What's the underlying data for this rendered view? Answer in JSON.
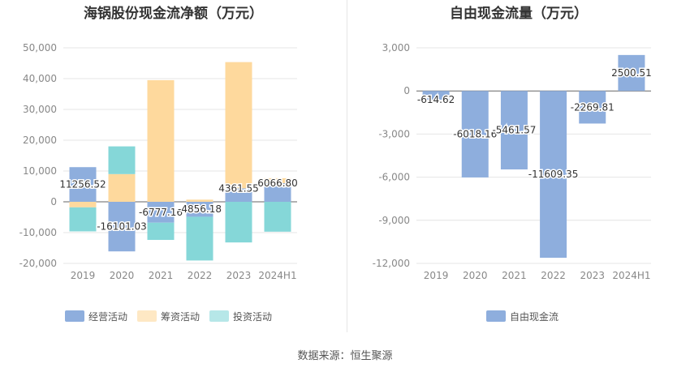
{
  "source": "数据来源：恒生聚源",
  "colors": {
    "operating": "#8eaedd",
    "financing": "#fed99d",
    "investing": "#85d7d8",
    "fcf": "#8eaedd"
  },
  "chart_data": [
    {
      "type": "bar",
      "stacked": true,
      "title": "海锅股份现金流净额（万元）",
      "categories": [
        "2019",
        "2020",
        "2021",
        "2022",
        "2023",
        "2024H1"
      ],
      "ylim": [
        -20000,
        50000
      ],
      "yticks": [
        "-20,000",
        "-10,000",
        "0",
        "10,000",
        "20,000",
        "30,000",
        "40,000",
        "50,000"
      ],
      "ytick_values": [
        -20000,
        -10000,
        0,
        10000,
        20000,
        30000,
        40000,
        50000
      ],
      "legend_position": "bottom",
      "series": [
        {
          "name": "经营活动",
          "values": [
            11256.52,
            -16101.03,
            -6777.16,
            -4856.18,
            4361.55,
            6066.8
          ]
        },
        {
          "name": "筹资活动",
          "values": [
            -1800,
            9000,
            39500,
            700,
            41000,
            1600
          ]
        },
        {
          "name": "投资活动",
          "values": [
            -7800,
            9000,
            -5600,
            -14200,
            -13200,
            -9700
          ]
        }
      ],
      "data_labels": [
        "11256.52",
        "-16101.03",
        "-6777.16",
        "-4856.18",
        "4361.55",
        "6066.80"
      ]
    },
    {
      "type": "bar",
      "title": "自由现金流量（万元）",
      "categories": [
        "2019",
        "2020",
        "2021",
        "2022",
        "2023",
        "2024H1"
      ],
      "ylim": [
        -12000,
        3000
      ],
      "yticks": [
        "-12,000",
        "-9,000",
        "-6,000",
        "-3,000",
        "0",
        "3,000"
      ],
      "ytick_values": [
        -12000,
        -9000,
        -6000,
        -3000,
        0,
        3000
      ],
      "legend_position": "bottom",
      "series": [
        {
          "name": "自由现金流",
          "values": [
            -614.62,
            -6018.16,
            -5461.57,
            -11609.35,
            -2269.81,
            2500.51
          ]
        }
      ],
      "data_labels": [
        "-614.62",
        "-6018.16",
        "-5461.57",
        "-11609.35",
        "-2269.81",
        "2500.51"
      ]
    }
  ]
}
